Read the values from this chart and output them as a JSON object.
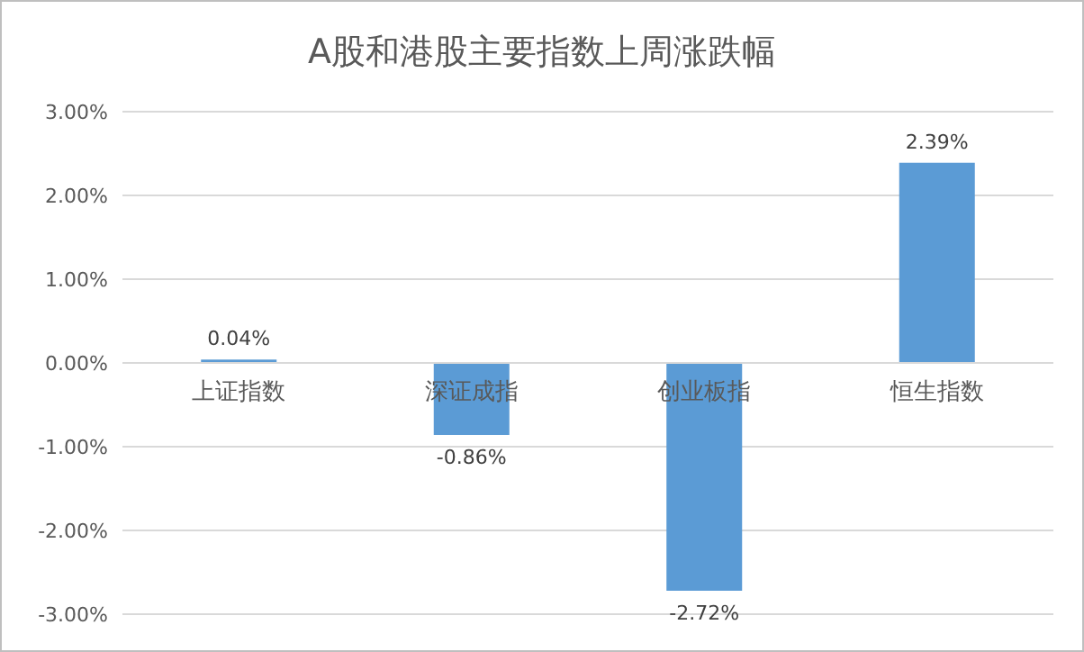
{
  "chart_data": {
    "type": "bar",
    "title": "A股和港股主要指数上周涨跌幅",
    "categories": [
      "上证指数",
      "深证成指",
      "创业板指",
      "恒生指数"
    ],
    "values": [
      0.04,
      -0.86,
      -2.72,
      2.39
    ],
    "value_labels": [
      "0.04%",
      "-0.86%",
      "-2.72%",
      "2.39%"
    ],
    "color": "#5b9bd5",
    "ylim": [
      -3,
      3
    ],
    "yticks": [
      {
        "value": -3,
        "label": "-3.00%"
      },
      {
        "value": -2,
        "label": "-2.00%"
      },
      {
        "value": -1,
        "label": "-1.00%"
      },
      {
        "value": 0,
        "label": "0.00%"
      },
      {
        "value": 1,
        "label": "1.00%"
      },
      {
        "value": 2,
        "label": "2.00%"
      },
      {
        "value": 3,
        "label": "3.00%"
      }
    ],
    "grid": "y"
  }
}
